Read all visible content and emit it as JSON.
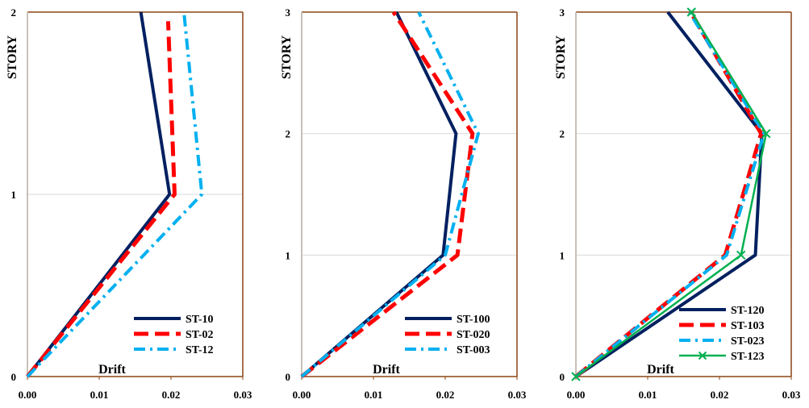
{
  "chart_data": [
    {
      "type": "line",
      "xlabel": "Drift",
      "ylabel": "STORY",
      "xlim": [
        0,
        0.03
      ],
      "ylim": [
        0,
        2
      ],
      "xticks": [
        "0.00",
        "0.01",
        "0.02",
        "0.03"
      ],
      "yticks": [
        "0",
        "1",
        "2"
      ],
      "grid": "horizontal",
      "legend_position": "bottom-right",
      "series": [
        {
          "name": "ST-10",
          "color": "#002060",
          "style": "solid",
          "x": [
            0,
            0.0198,
            0.0158
          ],
          "y": [
            0,
            1,
            2
          ]
        },
        {
          "name": "ST-02",
          "color": "#ff0000",
          "style": "dashed",
          "x": [
            0,
            0.0205,
            0.0196
          ],
          "y": [
            0,
            1,
            1.95
          ]
        },
        {
          "name": "ST-12",
          "color": "#00b0f0",
          "style": "dashdot",
          "x": [
            0,
            0.0243,
            0.0218
          ],
          "y": [
            0,
            1,
            2
          ]
        }
      ]
    },
    {
      "type": "line",
      "xlabel": "Drift",
      "ylabel": "STORY",
      "xlim": [
        0,
        0.03
      ],
      "ylim": [
        0,
        3
      ],
      "xticks": [
        "0.00",
        "0.01",
        "0.02",
        "0.03"
      ],
      "yticks": [
        "0",
        "1",
        "2",
        "3"
      ],
      "grid": "horizontal",
      "legend_position": "bottom-right",
      "series": [
        {
          "name": "ST-100",
          "color": "#002060",
          "style": "solid",
          "x": [
            0,
            0.0197,
            0.0215,
            0.0132
          ],
          "y": [
            0,
            1,
            2,
            3
          ]
        },
        {
          "name": "ST-020",
          "color": "#ff0000",
          "style": "dashed",
          "x": [
            0,
            0.0217,
            0.0238,
            0.0128
          ],
          "y": [
            0,
            1,
            2,
            3
          ]
        },
        {
          "name": "ST-003",
          "color": "#00b0f0",
          "style": "dashdot",
          "x": [
            0,
            0.02,
            0.0246,
            0.0163
          ],
          "y": [
            0,
            1,
            2,
            3
          ]
        }
      ]
    },
    {
      "type": "line",
      "xlabel": "Drift",
      "ylabel": "STORY",
      "xlim": [
        0,
        0.03
      ],
      "ylim": [
        0,
        3
      ],
      "xticks": [
        "0.00",
        "0.01",
        "0.02",
        "0.03"
      ],
      "yticks": [
        "0",
        "1",
        "2",
        "3"
      ],
      "grid": "horizontal",
      "legend_position": "bottom-right",
      "series": [
        {
          "name": "ST-120",
          "color": "#002060",
          "style": "solid",
          "marker": "none",
          "x": [
            0,
            0.025,
            0.0259,
            0.0128
          ],
          "y": [
            0,
            1,
            2,
            3
          ]
        },
        {
          "name": "ST-103",
          "color": "#ff0000",
          "style": "dashed",
          "marker": "none",
          "x": [
            0,
            0.0208,
            0.0258,
            0.016
          ],
          "y": [
            0,
            1,
            2,
            3
          ]
        },
        {
          "name": "ST-023",
          "color": "#00b0f0",
          "style": "dashdot",
          "marker": "none",
          "x": [
            0,
            0.021,
            0.0262,
            0.0158
          ],
          "y": [
            0,
            1,
            2,
            3
          ]
        },
        {
          "name": "ST-123",
          "color": "#00b050",
          "style": "solid",
          "marker": "x",
          "x": [
            0,
            0.023,
            0.0265,
            0.0161
          ],
          "y": [
            0,
            1,
            2,
            3
          ]
        }
      ]
    }
  ]
}
